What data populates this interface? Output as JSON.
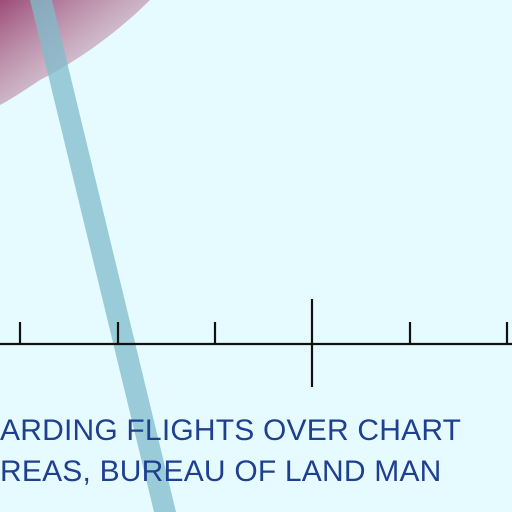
{
  "colors": {
    "background": "#e6fbff",
    "restricted_area_fill": "#8f2d60",
    "airway_band": "#7fbccb",
    "scale_line": "#111111",
    "note_text": "#1f3f8f"
  },
  "chart_note": {
    "line1": "ARDING FLIGHTS OVER CHART",
    "line2": "REAS, BUREAU OF LAND MAN"
  }
}
